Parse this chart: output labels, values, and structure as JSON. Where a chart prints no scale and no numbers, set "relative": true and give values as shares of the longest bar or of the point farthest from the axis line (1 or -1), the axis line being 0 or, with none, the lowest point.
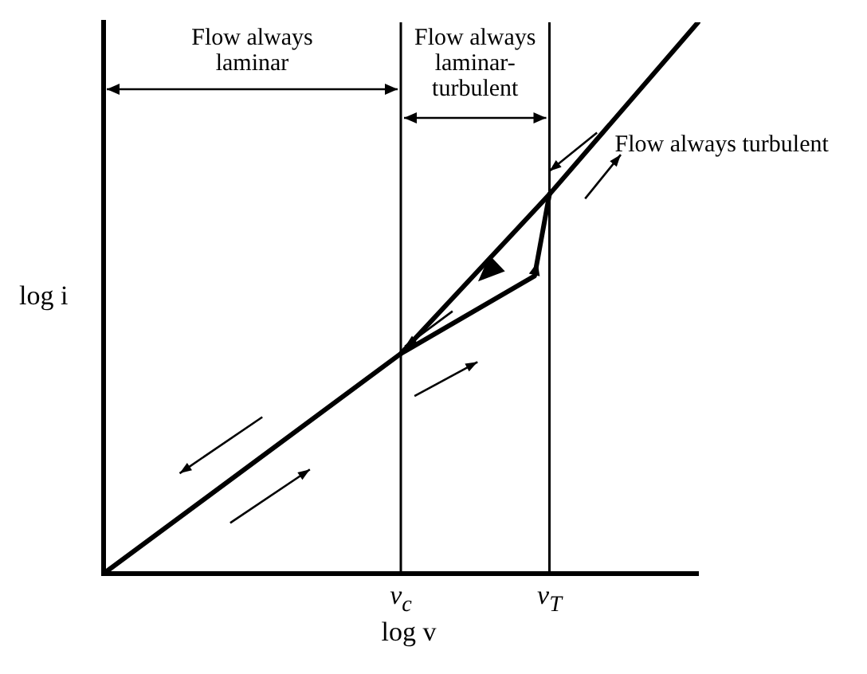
{
  "chart_data": {
    "type": "line",
    "relative": true,
    "xlabel": "log v",
    "ylabel": "log i",
    "categories": [
      null,
      null,
      null,
      null,
      null,
      null,
      null,
      null,
      null,
      null,
      null,
      null,
      null,
      null,
      null,
      null,
      null,
      null,
      null,
      null,
      "v$_{c}$",
      null,
      null,
      null,
      null,
      null,
      null,
      null,
      null,
      null,
      "v$_{T}$",
      null,
      null,
      null,
      null,
      null,
      null,
      null,
      null,
      null,
      null
    ],
    "series": [
      {
        "color": "#000000",
        "values": [
          0,
          null,
          null,
          null,
          null,
          null,
          null,
          null,
          null,
          null,
          null,
          null,
          null,
          null,
          null,
          null,
          null,
          null,
          null,
          null,
          0.399,
          null,
          null,
          null,
          null,
          null,
          null,
          null,
          null,
          null,
          0.688,
          null,
          null,
          null,
          null,
          null,
          null,
          null,
          null,
          null,
          1
        ]
      },
      {
        "color": "#000000",
        "values": [
          null,
          null,
          null,
          null,
          null,
          null,
          null,
          null,
          null,
          null,
          null,
          null,
          null,
          null,
          null,
          null,
          null,
          null,
          null,
          null,
          0.399,
          null,
          null,
          null,
          null,
          null,
          null,
          null,
          null,
          0.54,
          0.688,
          null,
          null,
          null,
          null,
          null,
          null,
          null,
          null,
          null,
          null
        ]
      }
    ],
    "ref_lines": [
      {
        "axis": "x",
        "value": "v$_{c}$",
        "color": "#000000"
      },
      {
        "axis": "x",
        "value": "v$_{T}$",
        "color": "#000000"
      }
    ],
    "annotations": [
      "Flow always laminar",
      "Flow always laminar-turbulent",
      "Flow always turbulent"
    ],
    "grid": false,
    "legend": false
  }
}
